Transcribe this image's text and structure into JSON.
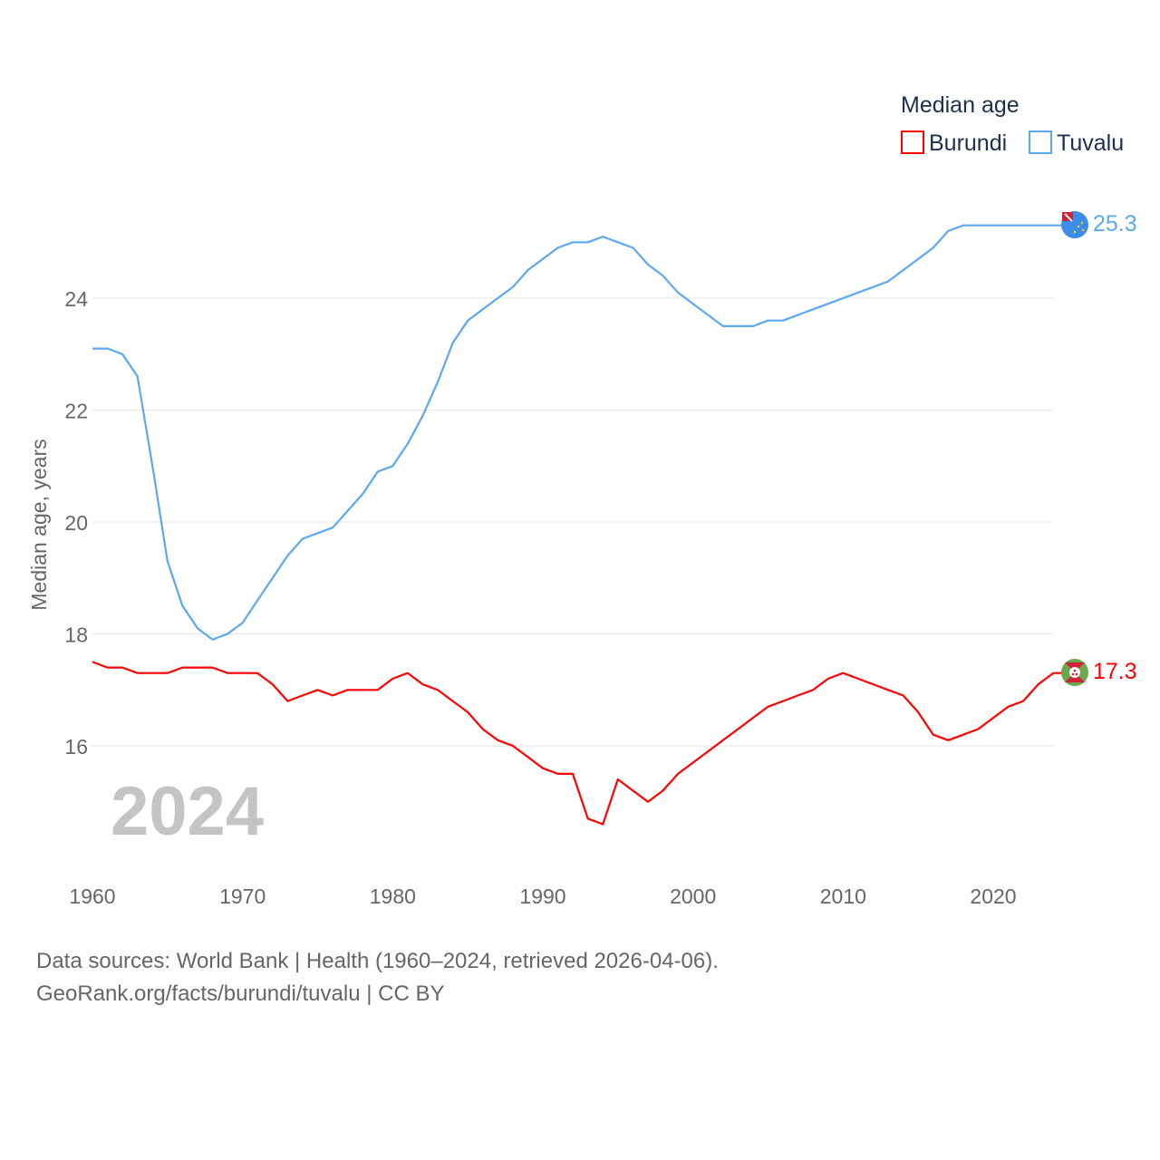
{
  "chart_data": {
    "type": "line",
    "legend_title": "Median age",
    "legend_position": "top-right",
    "ylabel": "Median age, years",
    "xlabel": "",
    "xlim": [
      1960,
      2024
    ],
    "ylim": [
      14,
      26
    ],
    "x_ticks": [
      1960,
      1970,
      1980,
      1990,
      2000,
      2010,
      2020
    ],
    "y_ticks": [
      16,
      18,
      20,
      22,
      24
    ],
    "grid": true,
    "year_watermark": "2024",
    "x": [
      1960,
      1961,
      1962,
      1963,
      1964,
      1965,
      1966,
      1967,
      1968,
      1969,
      1970,
      1971,
      1972,
      1973,
      1974,
      1975,
      1976,
      1977,
      1978,
      1979,
      1980,
      1981,
      1982,
      1983,
      1984,
      1985,
      1986,
      1987,
      1988,
      1989,
      1990,
      1991,
      1992,
      1993,
      1994,
      1995,
      1996,
      1997,
      1998,
      1999,
      2000,
      2001,
      2002,
      2003,
      2004,
      2005,
      2006,
      2007,
      2008,
      2009,
      2010,
      2011,
      2012,
      2013,
      2014,
      2015,
      2016,
      2017,
      2018,
      2019,
      2020,
      2021,
      2022,
      2023,
      2024
    ],
    "series": [
      {
        "name": "Burundi",
        "color": "#ff0000",
        "end_label": "17.3",
        "values": [
          17.5,
          17.4,
          17.4,
          17.3,
          17.3,
          17.3,
          17.4,
          17.4,
          17.4,
          17.3,
          17.3,
          17.3,
          17.1,
          16.8,
          16.9,
          17.0,
          16.9,
          17.0,
          17.0,
          17.0,
          17.2,
          17.3,
          17.1,
          17.0,
          16.8,
          16.6,
          16.3,
          16.1,
          16.0,
          15.8,
          15.6,
          15.5,
          15.5,
          14.7,
          14.6,
          15.4,
          15.2,
          15.0,
          15.2,
          15.5,
          15.7,
          15.9,
          16.1,
          16.3,
          16.5,
          16.7,
          16.8,
          16.9,
          17.0,
          17.2,
          17.3,
          17.2,
          17.1,
          17.0,
          16.9,
          16.6,
          16.2,
          16.1,
          16.2,
          16.3,
          16.5,
          16.7,
          16.8,
          17.1,
          17.3
        ]
      },
      {
        "name": "Tuvalu",
        "color": "#5ca8f0",
        "end_label": "25.3",
        "values": [
          23.1,
          23.1,
          23.0,
          22.6,
          21.0,
          19.3,
          18.5,
          18.1,
          17.9,
          18.0,
          18.2,
          18.6,
          19.0,
          19.4,
          19.7,
          19.8,
          19.9,
          20.2,
          20.5,
          20.9,
          21.0,
          21.4,
          21.9,
          22.5,
          23.2,
          23.6,
          23.8,
          24.0,
          24.2,
          24.5,
          24.7,
          24.9,
          25.0,
          25.0,
          25.1,
          25.0,
          24.9,
          24.6,
          24.4,
          24.1,
          23.9,
          23.7,
          23.5,
          23.5,
          23.5,
          23.6,
          23.6,
          23.7,
          23.8,
          23.9,
          24.0,
          24.1,
          24.2,
          24.3,
          24.5,
          24.7,
          24.9,
          25.2,
          25.3,
          25.3,
          25.3,
          25.3,
          25.3,
          25.3,
          25.3
        ]
      }
    ]
  },
  "footer": {
    "line1": "Data sources: World Bank | Health (1960–2024, retrieved 2026-04-06).",
    "line2": "GeoRank.org/facts/burundi/tuvalu | CC BY"
  }
}
